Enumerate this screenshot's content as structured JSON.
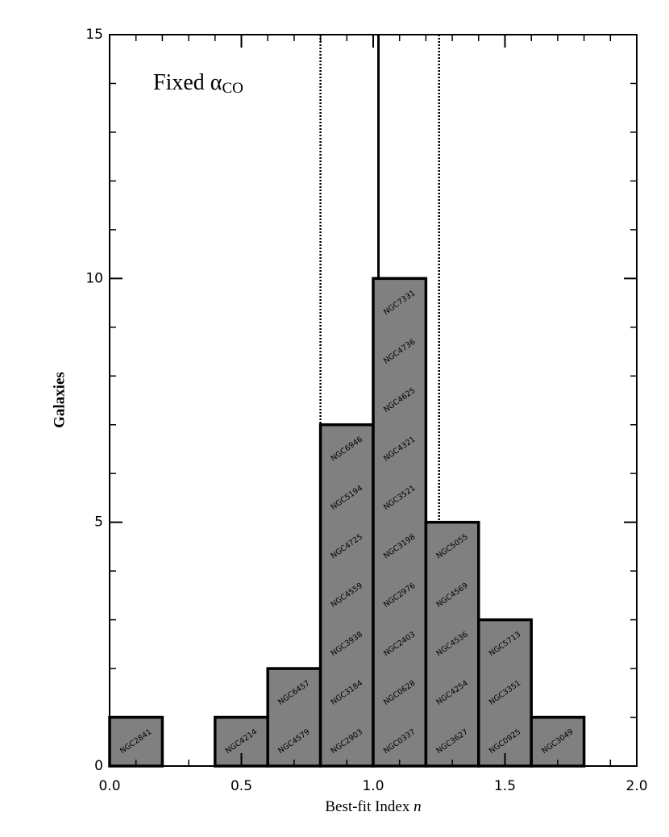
{
  "chart_data": {
    "type": "histogram",
    "annotation": "Fixed α",
    "annotation_sub": "CO",
    "xlabel": "Best-fit Index",
    "xlabel_var": "n",
    "ylabel": "Galaxies",
    "bins": [
      0,
      0.2,
      0.4,
      0.6,
      0.8,
      1.0,
      1.2,
      1.4,
      1.6,
      1.8,
      2.0
    ],
    "values": [
      1,
      0,
      1,
      2,
      7,
      10,
      5,
      3,
      1,
      0
    ],
    "color": "#808080",
    "edgecolor": "#000000",
    "galaxies": [
      [
        "NGC2841"
      ],
      [],
      [
        "NGC4214"
      ],
      [
        "NGC4579",
        "NGC6457"
      ],
      [
        "NGC2903",
        "NGC3184",
        "NGC3938",
        "NGC4559",
        "NGC4725",
        "NGC5194",
        "NGC6946"
      ],
      [
        "NGC0337",
        "NGC0628",
        "NGC2403",
        "NGC2976",
        "NGC3198",
        "NGC3521",
        "NGC4321",
        "NGC4625",
        "NGC4736",
        "NGC7331"
      ],
      [
        "NGC3627",
        "NGC4254",
        "NGC4536",
        "NGC4569",
        "NGC5055"
      ],
      [
        "NGC0925",
        "NGC3351",
        "NGC5713"
      ],
      [
        "NGC3049"
      ],
      []
    ],
    "vlines": [
      {
        "value": 1.02,
        "style": "solid"
      },
      {
        "value": 0.8,
        "style": "dotted"
      },
      {
        "value": 1.25,
        "style": "dotted"
      }
    ],
    "xlim": [
      0,
      2.0
    ],
    "ylim": [
      0,
      15
    ],
    "xticks": [
      {
        "value": 0,
        "label": "0.0"
      },
      0.5,
      {
        "value": 1.0,
        "label": "1.0"
      },
      1.5,
      {
        "value": 2.0,
        "label": "2.0"
      }
    ],
    "yticks": [
      0,
      5,
      10,
      15
    ],
    "xminor": [
      0.1,
      0.2,
      0.3,
      0.4,
      0.6,
      0.7,
      0.8,
      0.9,
      1.1,
      1.2,
      1.3,
      1.4,
      1.6,
      1.7,
      1.8,
      1.9
    ],
    "yminor": [
      1,
      2,
      3,
      4,
      6,
      7,
      8,
      9,
      11,
      12,
      13,
      14
    ]
  }
}
